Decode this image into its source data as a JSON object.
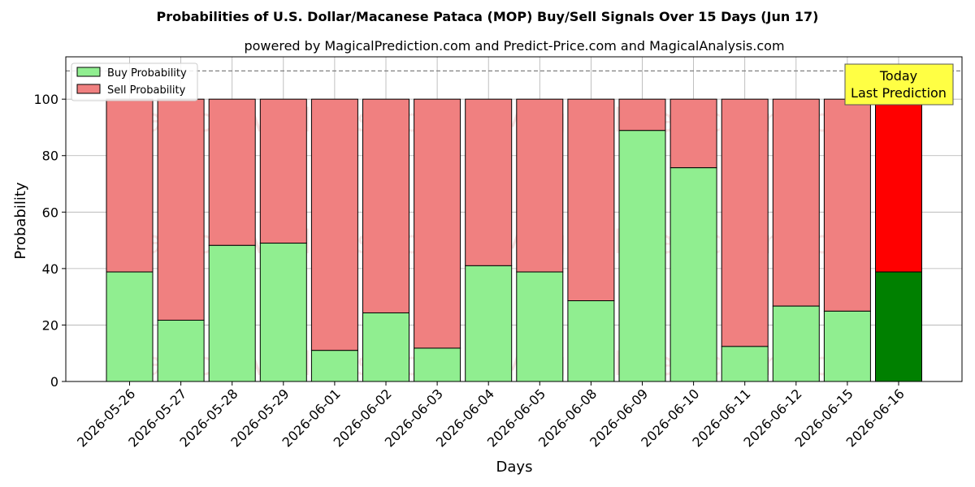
{
  "chart_data": {
    "type": "bar",
    "stacked": true,
    "title": "Probabilities of U.S. Dollar/Macanese Pataca (MOP) Buy/Sell Signals Over 15 Days (Jun 17)",
    "subtitle": "powered by MagicalPrediction.com and Predict-Price.com and MagicalAnalysis.com",
    "xlabel": "Days",
    "ylabel": "Probability",
    "ylim": [
      0,
      115
    ],
    "yticks": [
      0,
      20,
      40,
      60,
      80,
      100
    ],
    "reference_line": 110,
    "grid": true,
    "legend_position": "top-left",
    "categories": [
      "2026-05-26",
      "2026-05-27",
      "2026-05-28",
      "2026-05-29",
      "2026-06-01",
      "2026-06-02",
      "2026-06-03",
      "2026-06-04",
      "2026-06-05",
      "2026-06-08",
      "2026-06-09",
      "2026-06-10",
      "2026-06-11",
      "2026-06-12",
      "2026-06-15",
      "2026-06-16"
    ],
    "series": [
      {
        "name": "Buy Probability",
        "color": "#90ee90",
        "highlight_color": "#008000",
        "values": [
          38.8,
          21.7,
          48.2,
          49.0,
          11.0,
          24.3,
          11.8,
          41.0,
          38.8,
          28.6,
          88.9,
          75.7,
          12.4,
          26.7,
          24.9,
          38.8
        ]
      },
      {
        "name": "Sell Probability",
        "color": "#f08080",
        "highlight_color": "#ff0000",
        "values": [
          61.2,
          78.3,
          51.8,
          51.0,
          89.0,
          75.7,
          88.2,
          59.0,
          61.2,
          71.4,
          11.1,
          24.3,
          87.6,
          73.3,
          75.1,
          61.2
        ]
      }
    ],
    "annotation": {
      "lines": [
        "Today",
        "Last Prediction"
      ],
      "bg_color": "#ffff44"
    },
    "watermarks": [
      "MagicalAnalysis.com",
      "MagicalPrediction.com"
    ]
  }
}
